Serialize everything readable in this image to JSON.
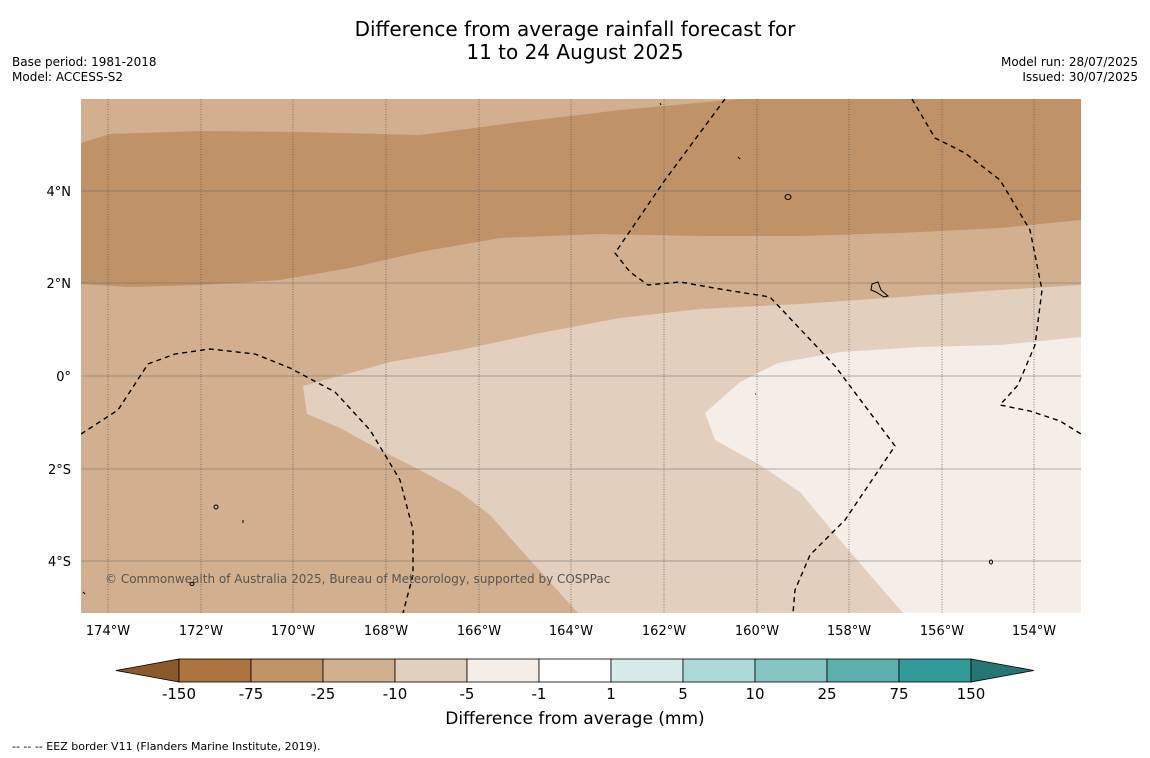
{
  "title": {
    "line1": "Difference from average rainfall forecast for",
    "line2": "11 to 24 August 2025"
  },
  "meta_left": {
    "base_period": "Base period: 1981-2018",
    "model": "Model: ACCESS-S2"
  },
  "meta_right": {
    "model_run": "Model run: 28/07/2025",
    "issued": "Issued: 30/07/2025"
  },
  "map": {
    "lat_labels": [
      "4°N",
      "2°N",
      "0°",
      "2°S",
      "4°S"
    ],
    "lon_labels": [
      "174°W",
      "172°W",
      "170°W",
      "168°W",
      "166°W",
      "164°W",
      "162°W",
      "160°W",
      "158°W",
      "156°W",
      "154°W"
    ],
    "lat_range_deg": [
      -5.1,
      6.0
    ],
    "lon_range_deg": [
      -174.6,
      -153.1
    ],
    "copyright": "© Commonwealth of Australia 2025, Bureau of Meteorology, supported by COSPPac"
  },
  "colorbar": {
    "title": "Difference from average (mm)",
    "tick_labels": [
      "-150",
      "-75",
      "-25",
      "-10",
      "-5",
      "-1",
      "1",
      "5",
      "10",
      "25",
      "75",
      "150"
    ],
    "colors": [
      "#8b5a2b",
      "#ae743f",
      "#c09268",
      "#d2b08f",
      "#e2cfbe",
      "#f5ede7",
      "#ffffff",
      "#d7ecea",
      "#acd8d7",
      "#84c4c2",
      "#5bb0ae",
      "#329a99",
      "#247573"
    ]
  },
  "footnote": "--  --  -- EEZ border V11 (Flanders Marine Institute, 2019)."
}
